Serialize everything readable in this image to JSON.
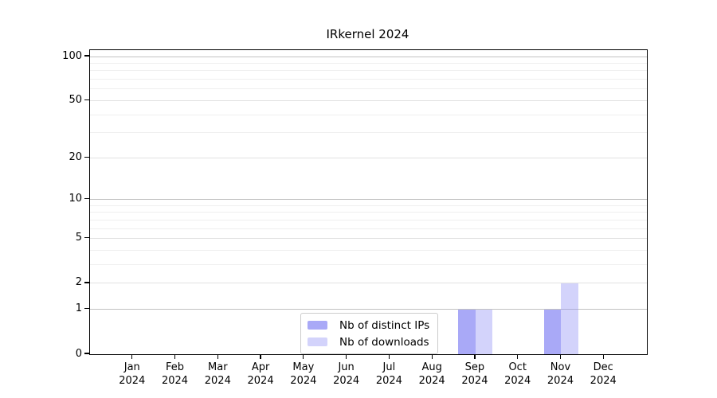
{
  "colors": {
    "axis": "#000000",
    "grid_major": "#c2c2c2",
    "grid_mid": "#e1e1e1",
    "grid_minor": "#efefef",
    "legend_border": "#cccccc",
    "bar_distinct_ips_hex": "#a9a9f8",
    "bar_downloads_hex": "#dcdcfa"
  },
  "chart_data": {
    "type": "bar",
    "title": "IRkernel 2024",
    "categories": [
      "Jan",
      "Feb",
      "Mar",
      "Apr",
      "May",
      "Jun",
      "Jul",
      "Aug",
      "Sep",
      "Oct",
      "Nov",
      "Dec"
    ],
    "x_year_label": "2024",
    "series": [
      {
        "name": "Nb of distinct IPs",
        "color": "rgba(150,150,245,0.82)",
        "values": [
          0,
          0,
          0,
          0,
          0,
          0,
          0,
          0,
          1,
          0,
          1,
          0
        ]
      },
      {
        "name": "Nb of downloads",
        "color": "rgba(150,150,245,0.42)",
        "values": [
          0,
          0,
          0,
          0,
          0,
          0,
          0,
          0,
          1,
          0,
          2,
          0
        ]
      }
    ],
    "y_scale": "log1p",
    "ylim": [
      0,
      110
    ],
    "y_ticks": [
      0,
      1,
      2,
      5,
      10,
      20,
      50,
      100
    ],
    "y_gridlines": {
      "major": [
        1,
        10,
        100
      ],
      "mid": [
        2,
        5,
        20,
        50
      ],
      "minor": [
        3,
        4,
        6,
        7,
        8,
        9,
        30,
        40,
        60,
        70,
        80,
        90
      ]
    },
    "grid": "horizontal-only",
    "legend_position": "bottom-center"
  }
}
